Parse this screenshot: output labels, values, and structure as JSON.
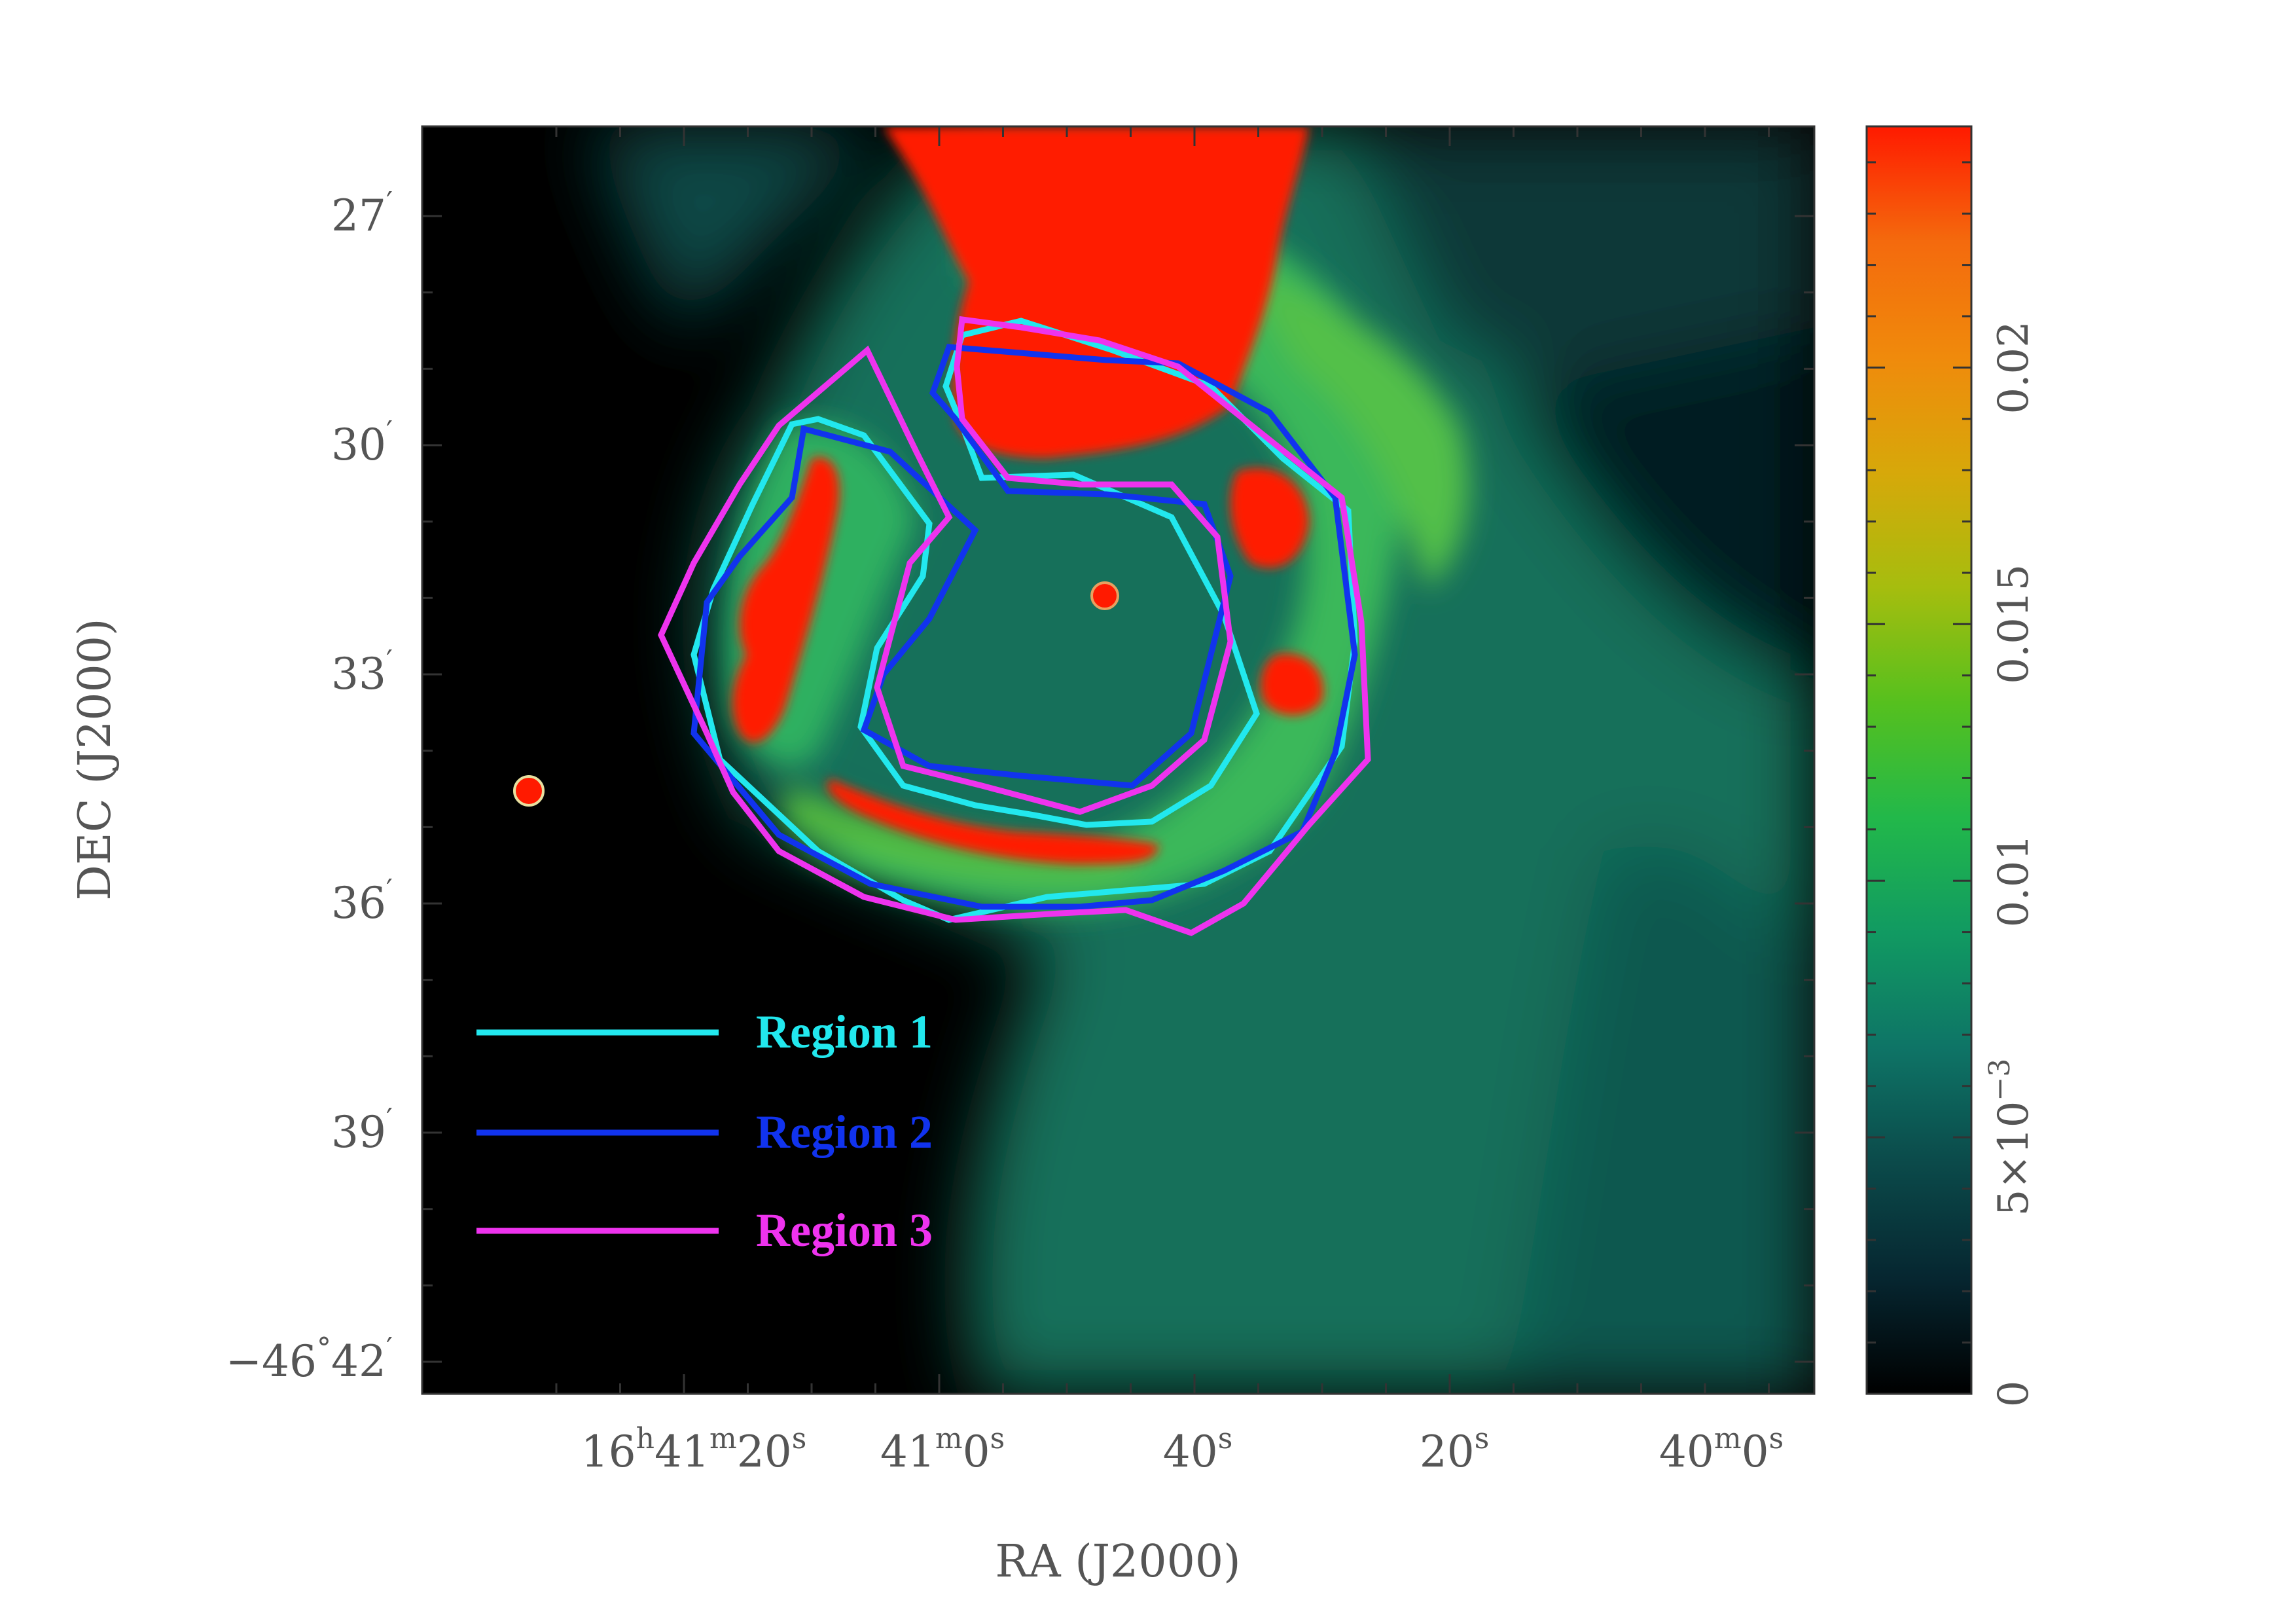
{
  "chart_data": {
    "type": "heatmap",
    "title": "",
    "xlabel": "RA (J2000)",
    "ylabel": "DEC (J2000)",
    "x_ticks": [
      {
        "h": "16",
        "m": "41",
        "s": "20"
      },
      {
        "h": "",
        "m": "41",
        "s": "0"
      },
      {
        "h": "",
        "m": "",
        "s": "40"
      },
      {
        "h": "",
        "m": "",
        "s": "20"
      },
      {
        "h": "",
        "m": "40",
        "s": "0"
      }
    ],
    "y_ticks": [
      {
        "deg": "",
        "min": "27"
      },
      {
        "deg": "",
        "min": "30"
      },
      {
        "deg": "",
        "min": "33"
      },
      {
        "deg": "",
        "min": "36"
      },
      {
        "deg": "",
        "min": "39"
      },
      {
        "deg": "−46",
        "min": "42"
      }
    ],
    "colorbar": {
      "range": [
        0,
        0.0247
      ],
      "ticks": [
        {
          "value": 0,
          "label": "0"
        },
        {
          "value": 0.005,
          "label": "5×10",
          "exp": "−3"
        },
        {
          "value": 0.01,
          "label": "0.01"
        },
        {
          "value": 0.015,
          "label": "0.015"
        },
        {
          "value": 0.02,
          "label": "0.02"
        }
      ],
      "colors": [
        "#000000",
        "#062630",
        "#0b4a4a",
        "#0e7466",
        "#119a62",
        "#22b84a",
        "#56c01e",
        "#a6bd0e",
        "#d7a80a",
        "#f08a0c",
        "#f46a0d",
        "#ff1a00"
      ]
    },
    "legend": {
      "placement": "lower-left",
      "entries": [
        {
          "name": "Region 1",
          "color": "#22e8ee"
        },
        {
          "name": "Region 2",
          "color": "#1133ee"
        },
        {
          "name": "Region 3",
          "color": "#ee33ee"
        }
      ]
    },
    "colors": {
      "background_dark": "#000000",
      "emission_mid": "#147a5e",
      "emission_high": "#ff1a00",
      "region1": "#22e8ee",
      "region2": "#1133ee",
      "region3": "#ee33ee"
    }
  }
}
